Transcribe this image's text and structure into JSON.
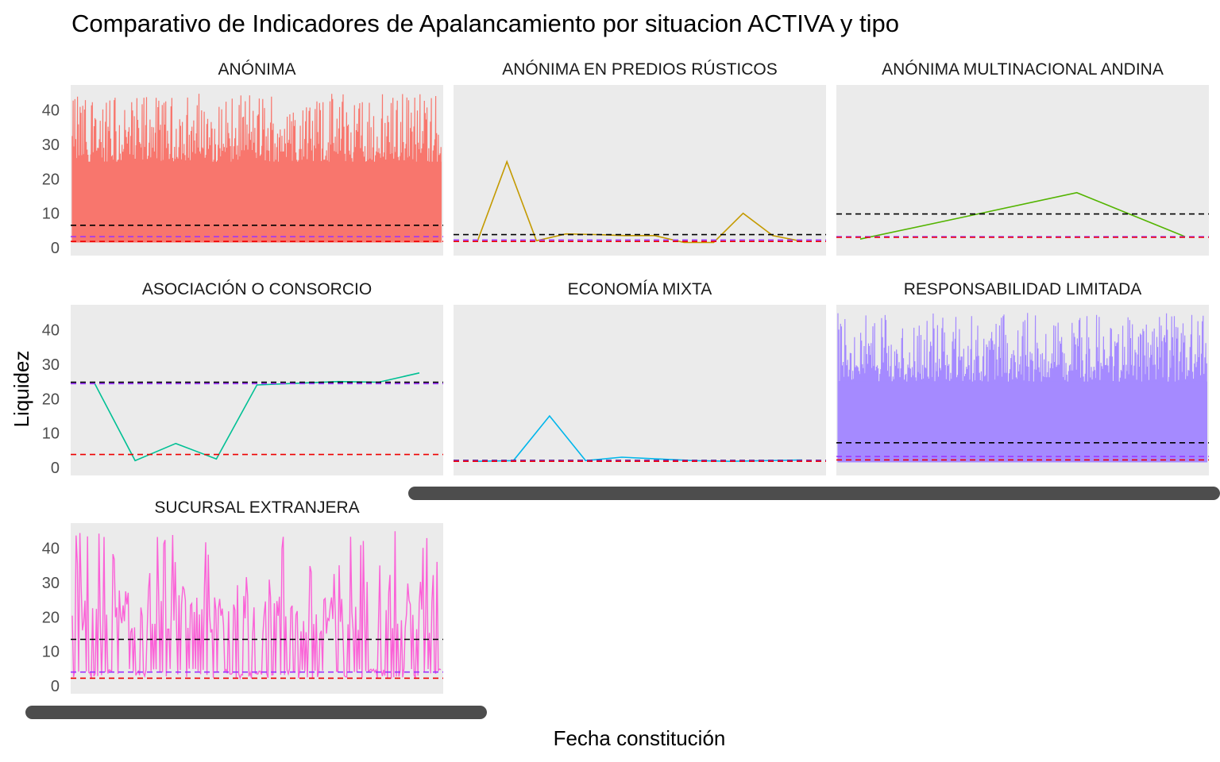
{
  "chart_data": {
    "type": "line",
    "title": "Comparativo de Indicadores de Apalancamiento por situacion ACTIVA y tipo",
    "xlabel": "Fecha constitución",
    "ylabel": "Liquidez",
    "ylim": [
      0,
      45
    ],
    "yticks": [
      0,
      10,
      20,
      30,
      40
    ],
    "facet_layout": "3 columns, free x scale",
    "reference_line_colors": [
      "#000000",
      "#9b30ff",
      "#ee0000"
    ],
    "panels": [
      {
        "label": "ANÓNIMA",
        "color": "#f8766d",
        "style": "dense",
        "band": [
          [
            0,
            25
          ],
          [
            5,
            30
          ],
          [
            15,
            35
          ],
          [
            30,
            45
          ]
        ],
        "refs": [
          6.5,
          3.2,
          1.8
        ]
      },
      {
        "label": "ANÓNIMA  EN PREDIOS RÚSTICOS",
        "color": "#c49a00",
        "style": "line",
        "values": [
          1.8,
          25,
          2,
          4,
          3.8,
          3.5,
          3.5,
          1.5,
          1.5,
          10,
          3.5,
          1.8
        ],
        "refs": [
          3.8,
          2.2,
          1.8
        ]
      },
      {
        "label": "ANÓNIMA MULTINACIONAL ANDINA",
        "color": "#53b400",
        "style": "line",
        "values": [
          2.5,
          9.2,
          16,
          3.2
        ],
        "refs": [
          9.8,
          3.2,
          3
        ]
      },
      {
        "label": "ASOCIACIÓN O CONSORCIO",
        "color": "#00c094",
        "style": "line",
        "values": [
          24.5,
          2,
          7,
          2.5,
          24,
          24.5,
          25,
          24.8,
          27.5
        ],
        "refs": [
          24.8,
          24.4,
          3.8
        ]
      },
      {
        "label": "ECONOMÍA MIXTA",
        "color": "#00b6eb",
        "style": "line",
        "values": [
          1.8,
          2,
          15,
          2,
          3,
          2.5,
          2,
          1.8,
          2,
          2.2
        ],
        "refs": [
          2.1,
          2,
          1.8
        ]
      },
      {
        "label": "RESPONSABILIDAD LIMITADA",
        "color": "#a58aff",
        "style": "dense",
        "band": [
          [
            2,
            25
          ],
          [
            10,
            30
          ],
          [
            20,
            35
          ],
          [
            30,
            45
          ]
        ],
        "refs": [
          7.2,
          3.2,
          2.2
        ]
      },
      {
        "label": "SUCURSAL  EXTRANJERA",
        "color": "#fb61d7",
        "style": "spiky",
        "refs": [
          13.5,
          4,
          2.2
        ]
      }
    ]
  }
}
